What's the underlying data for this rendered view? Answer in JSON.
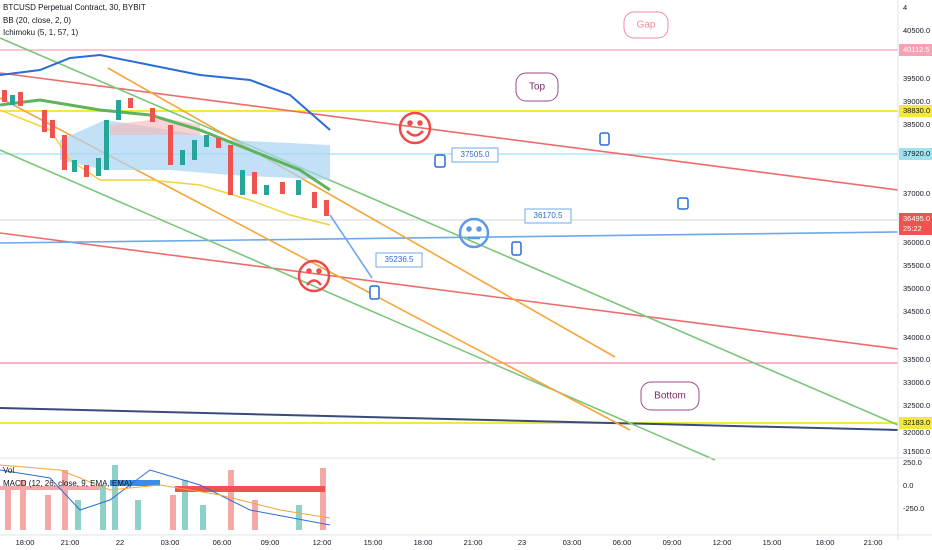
{
  "header": {
    "symbol": "BTCUSD Perpetual Contract, 30, BYBIT",
    "indicators": [
      "BB (20, close, 2, 0)",
      "Ichimoku (5, 1, 57, 1)"
    ]
  },
  "sub_pane": {
    "volume": "Vol",
    "macd": "MACD (12, 26, close, 9, EMA, EMA)",
    "scale": [
      "250.0",
      "0.0",
      "-250.0"
    ]
  },
  "price_scale": [
    "4",
    "40500.0",
    "39500.0",
    "39000.0",
    "38500.0",
    "37000.0",
    "36000.0",
    "35500.0",
    "35000.0",
    "34500.0",
    "34000.0",
    "33500.0",
    "33000.0",
    "32500.0",
    "32000.0",
    "31500.0"
  ],
  "price_tags": {
    "gap": "40112.5",
    "top": "38830.0",
    "mid": "37920.0",
    "last": "36495.0",
    "countdown": "25:22",
    "bottom": "32183.0"
  },
  "time_scale": [
    "18:00",
    "21:00",
    "22",
    "03:00",
    "06:00",
    "09:00",
    "12:00",
    "15:00",
    "18:00",
    "21:00",
    "23",
    "03:00",
    "06:00",
    "09:00",
    "12:00",
    "15:00",
    "18:00",
    "21:00"
  ],
  "annotations": {
    "gap": "Gap",
    "top": "Top",
    "bottom": "Bottom",
    "callouts": [
      "37505.0",
      "36170.5",
      "35236.5"
    ]
  }
}
